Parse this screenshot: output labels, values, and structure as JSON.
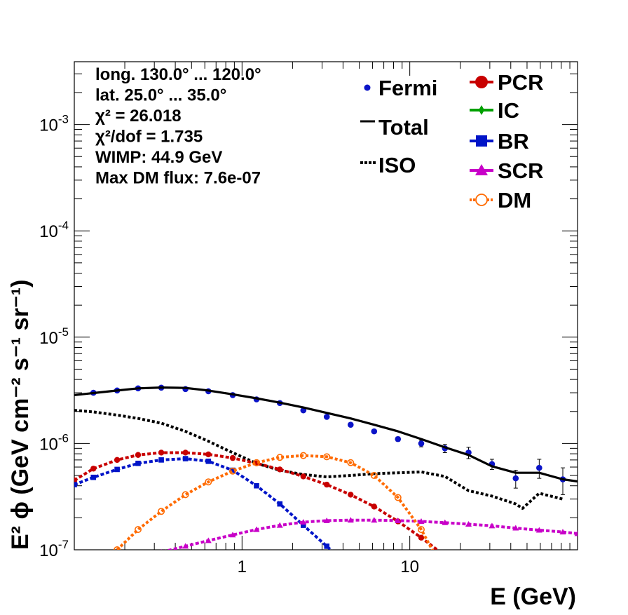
{
  "chart_data": {
    "type": "line",
    "xlabel": "E (GeV)",
    "ylabel": "E² ϕ (GeV cm⁻² s⁻¹ sr⁻¹)",
    "xscale": "log",
    "yscale": "log",
    "xlim": [
      0.1,
      100
    ],
    "ylim": [
      1e-07,
      0.0039
    ],
    "x_tick_labels": [
      {
        "v": 1,
        "label": "1"
      },
      {
        "v": 10,
        "label": "10"
      }
    ],
    "y_tick_labels": [
      {
        "v": 1e-07,
        "base": "10",
        "exp": "-7"
      },
      {
        "v": 1e-06,
        "base": "10",
        "exp": "-6"
      },
      {
        "v": 1e-05,
        "base": "10",
        "exp": "-5"
      },
      {
        "v": 0.0001,
        "base": "10",
        "exp": "-4"
      },
      {
        "v": 0.001,
        "base": "10",
        "exp": "-3"
      }
    ],
    "annotations": [
      "long. 130.0° ... 120.0°",
      "lat. 25.0° ... 35.0°",
      "χ² = 26.018",
      "χ²/dof = 1.735",
      "WIMP: 44.9 GeV",
      "Max DM flux: 7.6e-07"
    ],
    "legend_placement": "top-right",
    "series": [
      {
        "name": "Fermi",
        "style": "points-errorbars",
        "color": "#0b14c8",
        "x": [
          0.13,
          0.18,
          0.24,
          0.33,
          0.46,
          0.63,
          0.88,
          1.22,
          1.68,
          2.32,
          3.2,
          4.44,
          6.13,
          8.5,
          11.7,
          16.2,
          22.4,
          30.9,
          42.8,
          59.1,
          81.7
        ],
        "y": [
          3e-06,
          3.15e-06,
          3.3e-06,
          3.35e-06,
          3.25e-06,
          3.1e-06,
          2.85e-06,
          2.6e-06,
          2.4e-06,
          2.05e-06,
          1.78e-06,
          1.5e-06,
          1.3e-06,
          1.1e-06,
          1e-06,
          9e-07,
          8.2e-07,
          6.4e-07,
          4.7e-07,
          5.9e-07,
          4.6e-07
        ],
        "err": [
          0,
          0,
          0,
          0,
          0,
          0,
          0,
          0,
          0,
          0,
          0,
          0,
          0,
          5e-08,
          7e-08,
          8e-08,
          1e-07,
          7e-08,
          9e-08,
          1.2e-07,
          1.3e-07
        ]
      },
      {
        "name": "Total",
        "style": "solid",
        "color": "#000000",
        "x": [
          0.1,
          0.13,
          0.18,
          0.24,
          0.33,
          0.46,
          0.63,
          0.88,
          1.22,
          1.68,
          2.32,
          3.2,
          4.44,
          6.13,
          8.5,
          11.7,
          16.2,
          22.4,
          30.9,
          42.8,
          59.1,
          81.7,
          100
        ],
        "y": [
          2.85e-06,
          2.98e-06,
          3.15e-06,
          3.3e-06,
          3.36e-06,
          3.33e-06,
          3.15e-06,
          2.9e-06,
          2.66e-06,
          2.42e-06,
          2.18e-06,
          1.94e-06,
          1.72e-06,
          1.5e-06,
          1.3e-06,
          1.1e-06,
          9.2e-07,
          7.8e-07,
          6.1e-07,
          5.3e-07,
          5.3e-07,
          4.6e-07,
          4.4e-07
        ]
      },
      {
        "name": "ISO",
        "style": "dotted",
        "color": "#000000",
        "x": [
          0.1,
          0.13,
          0.18,
          0.24,
          0.33,
          0.46,
          0.63,
          0.88,
          1.22,
          1.68,
          2.32,
          3.2,
          4.44,
          6.13,
          8.5,
          11.7,
          16.2,
          22.4,
          30.9,
          42.8,
          47,
          59.1,
          81.7
        ],
        "y": [
          2.05e-06,
          1.98e-06,
          1.85e-06,
          1.72e-06,
          1.55e-06,
          1.3e-06,
          1.05e-06,
          8.2e-07,
          6.5e-07,
          5.6e-07,
          5.1e-07,
          4.85e-07,
          5e-07,
          5.2e-07,
          5.3e-07,
          5.4e-07,
          4.9e-07,
          3.6e-07,
          3.2e-07,
          2.7e-07,
          2.45e-07,
          3.4e-07,
          3e-07
        ]
      },
      {
        "name": "PCR",
        "style": "dashed-circles",
        "color": "#c80000",
        "x": [
          0.1,
          0.13,
          0.18,
          0.24,
          0.33,
          0.46,
          0.63,
          0.88,
          1.22,
          1.68,
          2.32,
          3.2,
          4.44,
          6.13,
          8.5,
          11.7,
          16.2
        ],
        "y": [
          4.5e-07,
          5.8e-07,
          7e-07,
          7.8e-07,
          8.2e-07,
          8.2e-07,
          7.9e-07,
          7.3e-07,
          6.5e-07,
          5.7e-07,
          4.9e-07,
          4.1e-07,
          3.3e-07,
          2.55e-07,
          1.85e-07,
          1.3e-07,
          8.8e-08
        ]
      },
      {
        "name": "IC",
        "style": "dashed-crosses",
        "color": "#00a000",
        "x": [],
        "y": []
      },
      {
        "name": "BR",
        "style": "dashed-squares",
        "color": "#0014c8",
        "x": [
          0.1,
          0.13,
          0.18,
          0.24,
          0.33,
          0.46,
          0.63,
          0.88,
          1.22,
          1.68,
          2.32,
          3.2,
          4.44
        ],
        "y": [
          4.1e-07,
          4.8e-07,
          5.7e-07,
          6.5e-07,
          7e-07,
          7.2e-07,
          6.8e-07,
          5.6e-07,
          4e-07,
          2.7e-07,
          1.7e-07,
          1.08e-07,
          6.8e-08
        ]
      },
      {
        "name": "SCR",
        "style": "dashed-triangles",
        "color": "#c800c8",
        "x": [
          0.25,
          0.33,
          0.46,
          0.63,
          0.88,
          1.22,
          1.68,
          2.32,
          3.2,
          4.44,
          6.13,
          8.5,
          11.7,
          16.2,
          22.4,
          30.9,
          42.8,
          59.1,
          81.7,
          100
        ],
        "y": [
          8.5e-08,
          9.5e-08,
          1.08e-07,
          1.22e-07,
          1.38e-07,
          1.55e-07,
          1.7e-07,
          1.82e-07,
          1.88e-07,
          1.9e-07,
          1.9e-07,
          1.88e-07,
          1.85e-07,
          1.8e-07,
          1.74e-07,
          1.68e-07,
          1.6e-07,
          1.53e-07,
          1.47e-07,
          1.42e-07
        ]
      },
      {
        "name": "DM",
        "style": "dotted-open-circles",
        "color": "#ff6a00",
        "x": [
          0.18,
          0.24,
          0.33,
          0.46,
          0.63,
          0.88,
          1.22,
          1.68,
          2.32,
          3.2,
          4.44,
          6.13,
          8.5,
          11.7,
          16.2
        ],
        "y": [
          1e-07,
          1.55e-07,
          2.3e-07,
          3.3e-07,
          4.35e-07,
          5.5e-07,
          6.6e-07,
          7.4e-07,
          7.7e-07,
          7.5e-07,
          6.6e-07,
          5e-07,
          3.1e-07,
          1.55e-07,
          6e-08
        ]
      }
    ]
  }
}
